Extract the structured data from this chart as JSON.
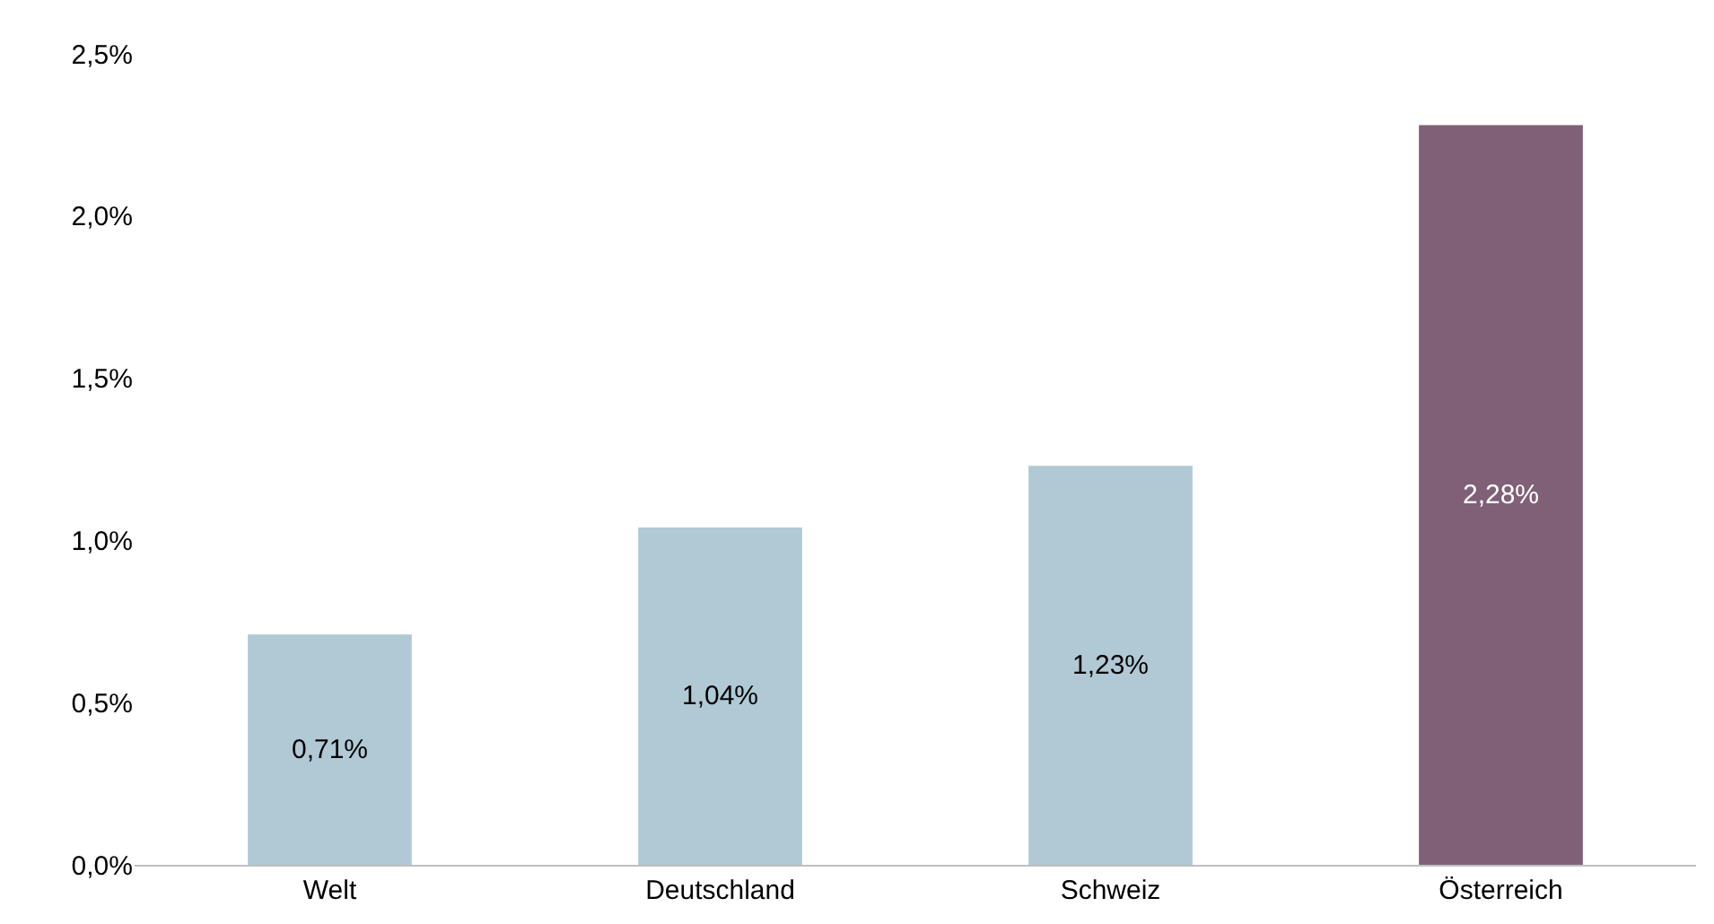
{
  "chart_data": {
    "type": "bar",
    "categories": [
      "Welt",
      "Deutschland",
      "Schweiz",
      "Österreich"
    ],
    "values": [
      0.71,
      1.04,
      1.23,
      2.28
    ],
    "colors": [
      "#b0c9d5",
      "#b0c9d5",
      "#b0c9d5",
      "#7f6076"
    ],
    "value_labels": [
      "0,71%",
      "1,04%",
      "1,23%",
      "2,28%"
    ],
    "ylim": [
      0,
      2.5
    ],
    "yticks": [
      {
        "value": 0,
        "label": "0,0%"
      },
      {
        "value": 0.5,
        "label": "0,5%"
      },
      {
        "value": 1.0,
        "label": "1,0%"
      },
      {
        "value": 1.5,
        "label": "1,5%"
      },
      {
        "value": 2.0,
        "label": "2,0%"
      },
      {
        "value": 2.5,
        "label": "2,5%"
      }
    ]
  }
}
